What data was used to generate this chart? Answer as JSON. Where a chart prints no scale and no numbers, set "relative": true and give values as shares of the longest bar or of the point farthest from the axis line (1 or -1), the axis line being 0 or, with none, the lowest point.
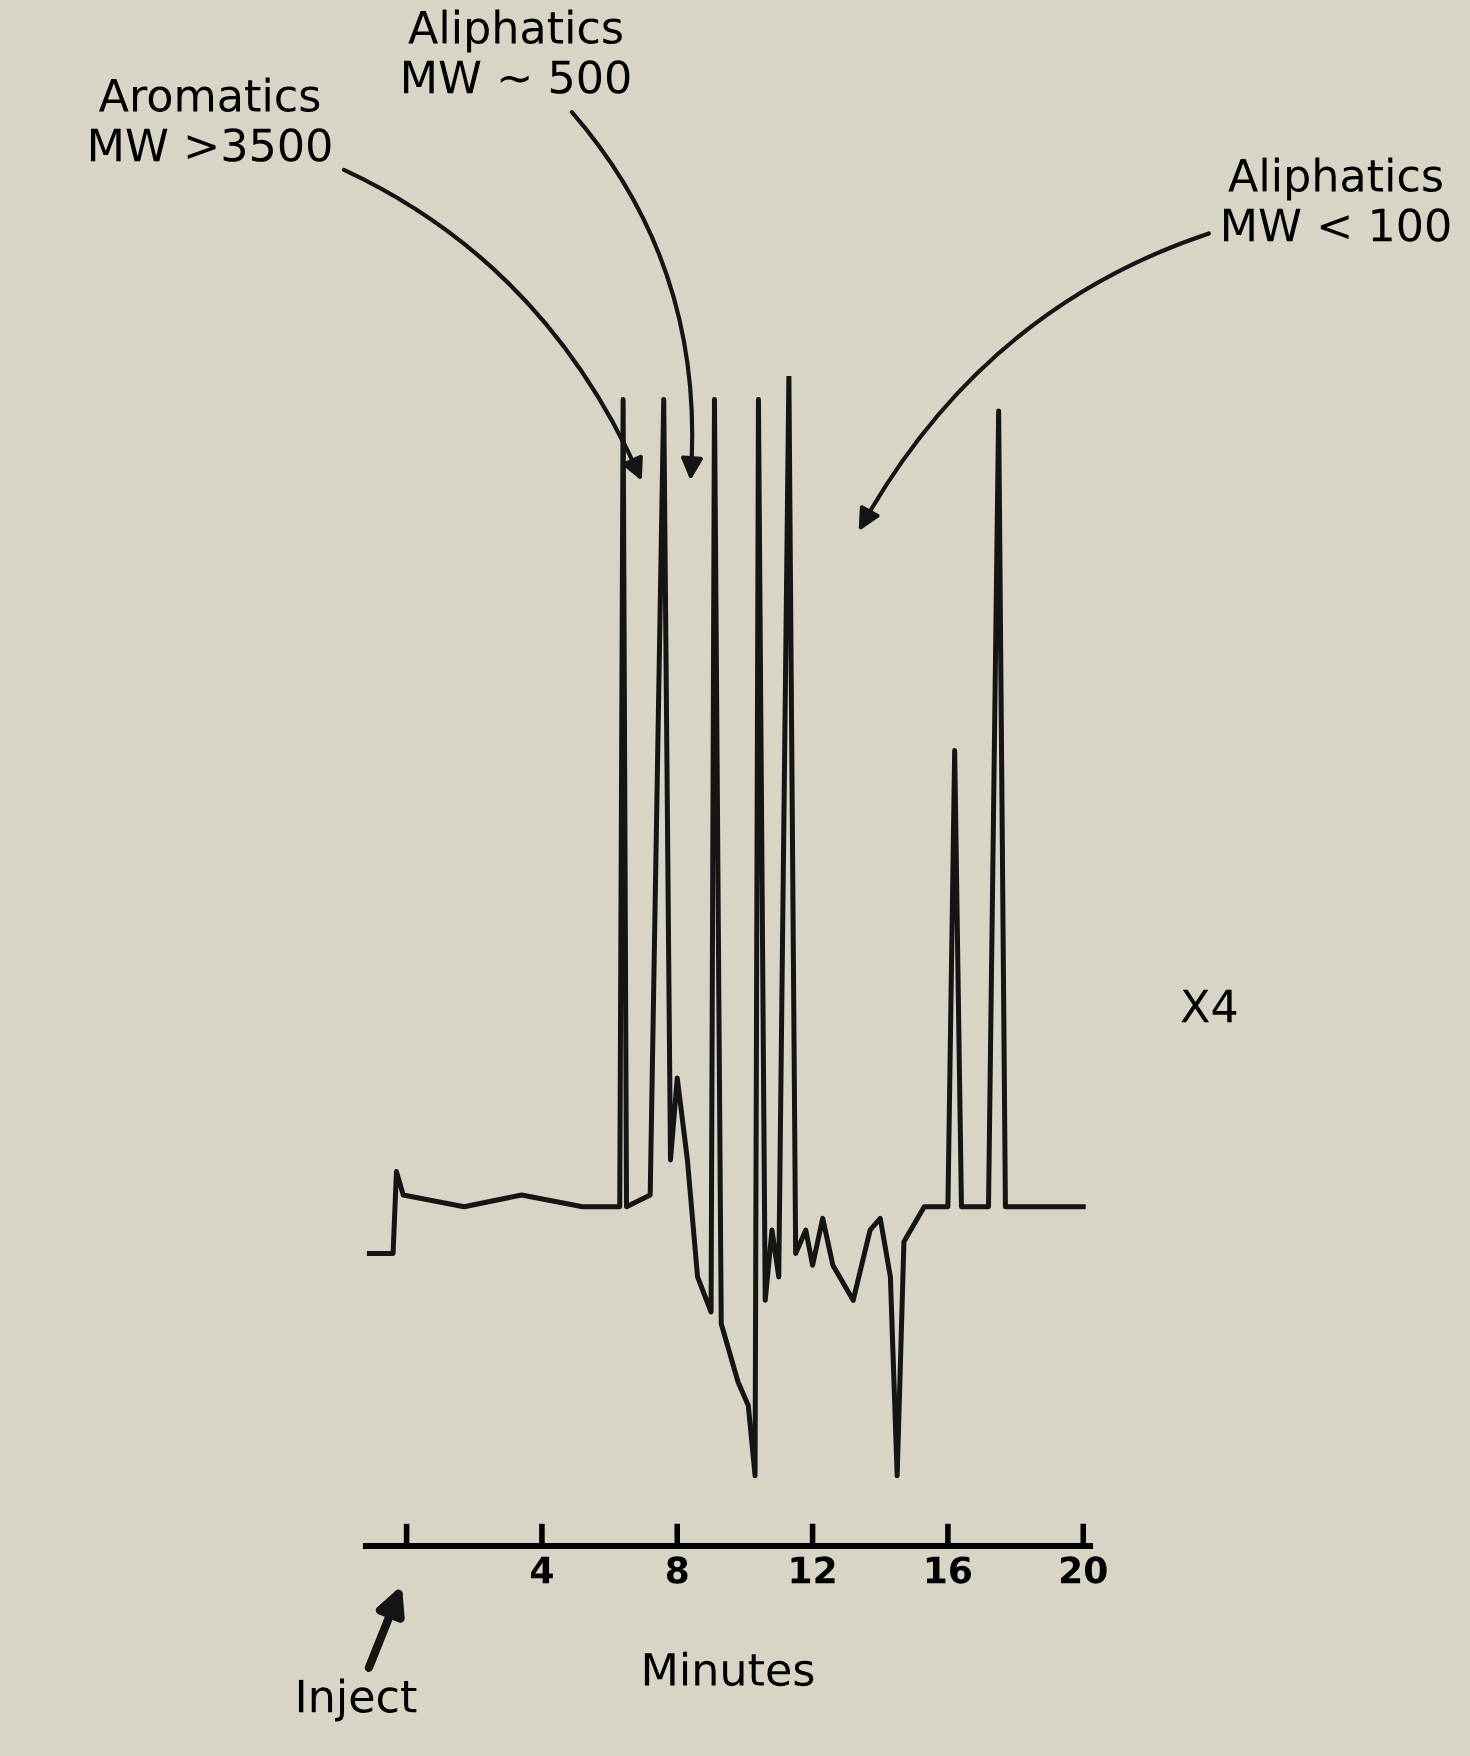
{
  "chart_data": {
    "type": "line",
    "relative": true,
    "xlabel": "Minutes",
    "x": [
      -1.1,
      -0.4,
      -0.3,
      -0.1,
      1.7,
      3.4,
      5.2,
      6.3,
      6.4,
      6.5,
      7.2,
      7.6,
      7.8,
      8.0,
      8.3,
      8.6,
      9.0,
      9.1,
      9.3,
      9.8,
      10.1,
      10.3,
      10.4,
      10.6,
      10.8,
      11.0,
      11.3,
      11.5,
      11.8,
      12.0,
      12.3,
      12.6,
      13.2,
      13.7,
      14.0,
      14.3,
      14.5,
      14.7,
      15.3,
      16.0,
      16.2,
      16.4,
      17.2,
      17.5,
      17.7,
      20.0
    ],
    "series": [
      {
        "color": "#151515",
        "values": [
          0.25,
          0.25,
          0.32,
          0.3,
          0.29,
          0.3,
          0.29,
          0.29,
          0.98,
          0.29,
          0.3,
          0.98,
          0.33,
          0.4,
          0.33,
          0.23,
          0.2,
          0.98,
          0.19,
          0.14,
          0.12,
          0.06,
          0.98,
          0.21,
          0.27,
          0.23,
          1.0,
          0.25,
          0.27,
          0.24,
          0.28,
          0.24,
          0.21,
          0.27,
          0.28,
          0.23,
          0.06,
          0.26,
          0.29,
          0.29,
          0.68,
          0.29,
          0.29,
          0.97,
          0.29,
          0.29
        ]
      }
    ],
    "xlim": [
      -1.2,
      20.2
    ],
    "xticks": [
      {
        "value": 0,
        "label": null
      },
      4,
      8,
      12,
      16,
      20
    ],
    "grid": false,
    "legend": false,
    "annotations": [
      "Aromatics\nMW >3500",
      "Aliphatics\nMW ∼ 500",
      "Aliphatics\nMW < 100",
      "X4",
      "Inject"
    ]
  }
}
